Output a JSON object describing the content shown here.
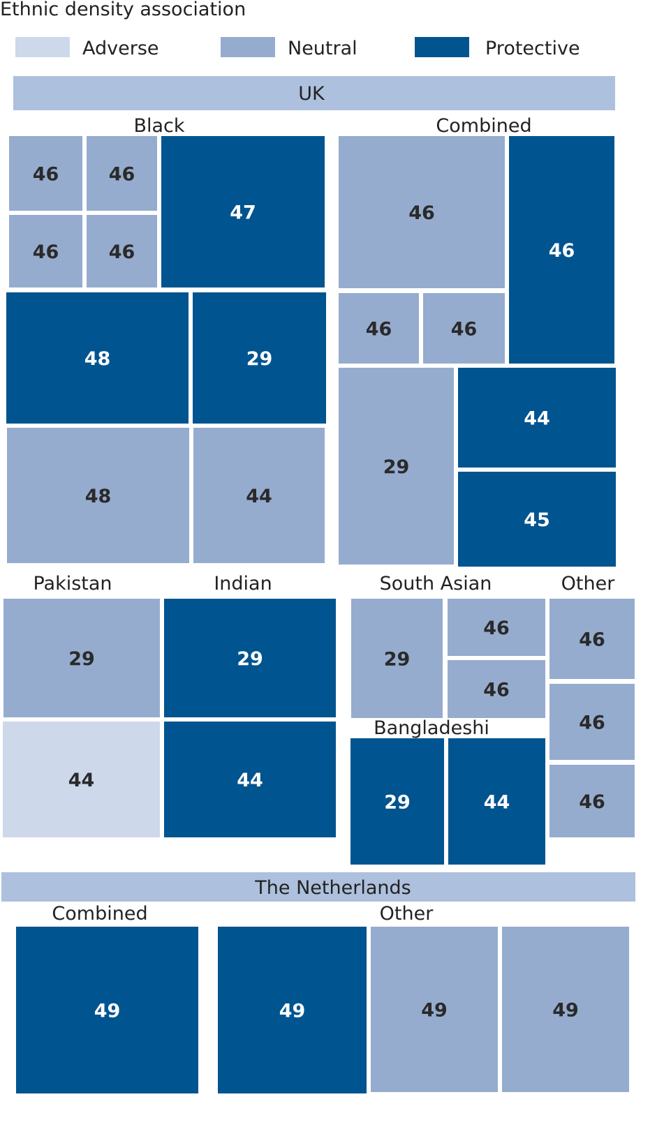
{
  "chart_data": {
    "type": "treemap",
    "title": "Ethnic density association",
    "legend": {
      "placement": "top",
      "items": [
        {
          "key": "adverse",
          "label": "Adverse",
          "color": "#cdd9ea"
        },
        {
          "key": "neutral",
          "label": "Neutral",
          "color": "#95acce"
        },
        {
          "key": "protective",
          "label": "Protective",
          "color": "#00548f"
        }
      ]
    },
    "band_color": "#adc0dd",
    "regions": [
      {
        "name": "UK",
        "groups": [
          {
            "name": "Black",
            "cells": [
              {
                "value": 46,
                "assoc": "neutral"
              },
              {
                "value": 46,
                "assoc": "neutral"
              },
              {
                "value": 46,
                "assoc": "neutral"
              },
              {
                "value": 46,
                "assoc": "neutral"
              },
              {
                "value": 47,
                "assoc": "protective"
              },
              {
                "value": 48,
                "assoc": "protective"
              },
              {
                "value": 29,
                "assoc": "protective"
              },
              {
                "value": 48,
                "assoc": "neutral"
              },
              {
                "value": 44,
                "assoc": "neutral"
              }
            ]
          },
          {
            "name": "Combined",
            "cells": [
              {
                "value": 46,
                "assoc": "neutral"
              },
              {
                "value": 46,
                "assoc": "protective"
              },
              {
                "value": 46,
                "assoc": "neutral"
              },
              {
                "value": 46,
                "assoc": "neutral"
              },
              {
                "value": 29,
                "assoc": "neutral"
              },
              {
                "value": 44,
                "assoc": "protective"
              },
              {
                "value": 45,
                "assoc": "protective"
              }
            ]
          },
          {
            "name": "Pakistan",
            "cells": [
              {
                "value": 29,
                "assoc": "neutral"
              },
              {
                "value": 44,
                "assoc": "adverse"
              }
            ]
          },
          {
            "name": "Indian",
            "cells": [
              {
                "value": 29,
                "assoc": "protective"
              },
              {
                "value": 44,
                "assoc": "protective"
              }
            ]
          },
          {
            "name": "South Asian",
            "cells": [
              {
                "value": 29,
                "assoc": "neutral"
              },
              {
                "value": 46,
                "assoc": "neutral"
              },
              {
                "value": 46,
                "assoc": "neutral"
              }
            ]
          },
          {
            "name": "Bangladeshi",
            "cells": [
              {
                "value": 29,
                "assoc": "protective"
              },
              {
                "value": 44,
                "assoc": "protective"
              }
            ]
          },
          {
            "name": "Other",
            "cells": [
              {
                "value": 46,
                "assoc": "neutral"
              },
              {
                "value": 46,
                "assoc": "neutral"
              },
              {
                "value": 46,
                "assoc": "neutral"
              }
            ]
          }
        ]
      },
      {
        "name": "The Netherlands",
        "groups": [
          {
            "name": "Combined",
            "cells": [
              {
                "value": 49,
                "assoc": "protective"
              }
            ]
          },
          {
            "name": "Other",
            "cells": [
              {
                "value": 49,
                "assoc": "protective"
              },
              {
                "value": 49,
                "assoc": "neutral"
              },
              {
                "value": 49,
                "assoc": "neutral"
              }
            ]
          }
        ]
      }
    ]
  }
}
